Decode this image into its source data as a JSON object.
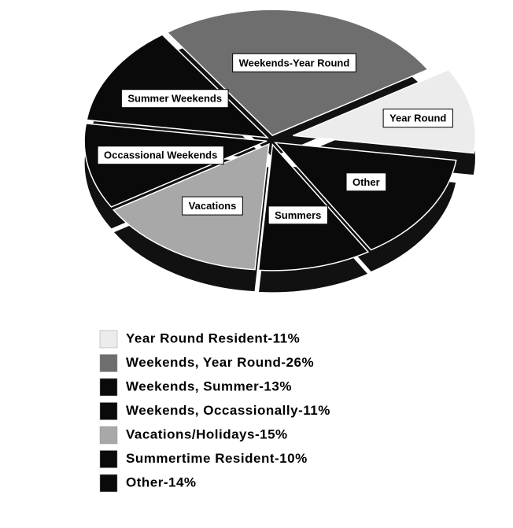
{
  "chart_data": {
    "type": "pie",
    "categories": [
      "Year Round",
      "Weekends-Year Round",
      "Summer Weekends",
      "Occassional Weekends",
      "Vacations",
      "Summers",
      "Other"
    ],
    "values": [
      11,
      26,
      13,
      11,
      15,
      10,
      14
    ],
    "legend_labels": [
      "Year Round Resident-11%",
      "Weekends, Year Round-26%",
      "Weekends, Summer-13%",
      "Weekends, Occassionally-11%",
      "Vacations/Holidays-15%",
      "Summertime Resident-10%",
      "Other-14%"
    ],
    "colors": [
      "#ececec",
      "#6e6e6e",
      "#0a0a0a",
      "#0a0a0a",
      "#a8a8a8",
      "#0a0a0a",
      "#0a0a0a"
    ]
  }
}
